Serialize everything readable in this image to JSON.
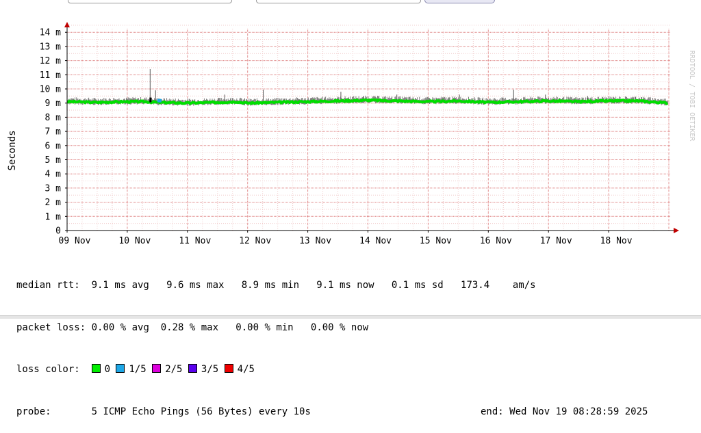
{
  "chart_data": {
    "type": "line",
    "ylabel": "Seconds",
    "watermark": "RRDTOOL / TOBI OETIKER",
    "y_ticks": [
      "0",
      "1 m",
      "2 m",
      "3 m",
      "4 m",
      "5 m",
      "6 m",
      "7 m",
      "8 m",
      "9 m",
      "10 m",
      "11 m",
      "12 m",
      "13 m",
      "14 m"
    ],
    "ylim_ms": [
      0,
      14.5
    ],
    "x_ticks": [
      "09 Nov",
      "10 Nov",
      "11 Nov",
      "12 Nov",
      "13 Nov",
      "14 Nov",
      "15 Nov",
      "16 Nov",
      "17 Nov",
      "18 Nov"
    ],
    "xlim_days": [
      0,
      10.1
    ],
    "grid": true,
    "series": [
      {
        "name": "0",
        "color": "#00dd00",
        "x_days": [
          0,
          0.5,
          1.0,
          1.3,
          1.5,
          2.0,
          2.5,
          2.8,
          3.0,
          3.5,
          4.0,
          4.5,
          5.0,
          5.5,
          6.0,
          6.5,
          7.0,
          7.5,
          8.0,
          8.5,
          9.0,
          9.5,
          10.0
        ],
        "median_ms": [
          9.1,
          9.05,
          9.1,
          9.1,
          9.05,
          9.0,
          9.05,
          9.1,
          9.0,
          9.05,
          9.1,
          9.15,
          9.2,
          9.15,
          9.1,
          9.15,
          9.05,
          9.1,
          9.15,
          9.1,
          9.15,
          9.15,
          9.0
        ]
      }
    ],
    "spikes_ms": [
      {
        "x_days": 1.38,
        "y_ms": 11.4
      },
      {
        "x_days": 1.47,
        "y_ms": 9.9
      },
      {
        "x_days": 2.62,
        "y_ms": 9.6
      },
      {
        "x_days": 3.26,
        "y_ms": 9.95
      },
      {
        "x_days": 4.55,
        "y_ms": 9.8
      },
      {
        "x_days": 5.48,
        "y_ms": 9.6
      },
      {
        "x_days": 6.52,
        "y_ms": 9.6
      },
      {
        "x_days": 7.42,
        "y_ms": 9.95
      },
      {
        "x_days": 7.95,
        "y_ms": 9.6
      },
      {
        "x_days": 8.65,
        "y_ms": 9.5
      },
      {
        "x_days": 9.45,
        "y_ms": 9.45
      }
    ]
  },
  "legend": {
    "median_rtt_label": "median rtt:",
    "median_rtt_values": "9.1 ms avg   9.6 ms max   8.9 ms min   9.1 ms now   0.1 ms sd   173.4    am/s",
    "packet_loss_label": "packet loss:",
    "packet_loss_values": "0.00 % avg  0.28 % max   0.00 % min   0.00 % now",
    "loss_color_label": "loss color:",
    "loss_colors": [
      {
        "label": "0",
        "color": "#00ee00"
      },
      {
        "label": "1/5",
        "color": "#1ea7e6"
      },
      {
        "label": "2/5",
        "color": "#dd00dd"
      },
      {
        "label": "3/5",
        "color": "#5a00ee"
      },
      {
        "label": "4/5",
        "color": "#ee0000"
      }
    ],
    "probe_label": "probe:",
    "probe_value": "5 ICMP Echo Pings (56 Bytes) every 10s",
    "end_text": "end: Wed Nov 19 08:28:59 2025"
  }
}
